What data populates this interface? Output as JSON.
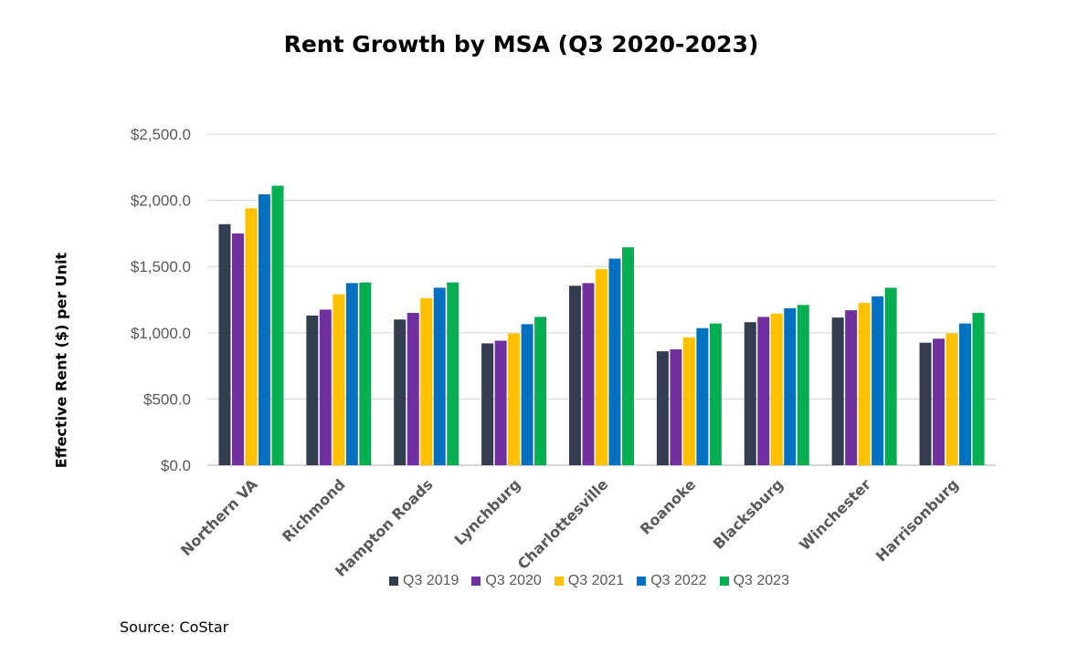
{
  "chart_data": {
    "type": "bar",
    "title": "Rent Growth by MSA (Q3 2020-2023)",
    "ylabel": "Effective Rent ($) per Unit",
    "xlabel": "",
    "ylim": [
      0,
      2500
    ],
    "yticks": [
      "$0.0",
      "$500.0",
      "$1,000.0",
      "$1,500.0",
      "$2,000.0",
      "$2,500.0"
    ],
    "grid": true,
    "legend_position": "bottom",
    "categories": [
      "Northern VA",
      "Richmond",
      "Hampton Roads",
      "Lynchburg",
      "Charlottesville",
      "Roanoke",
      "Blacksburg",
      "Winchester",
      "Harrisonburg"
    ],
    "series": [
      {
        "name": "Q3 2019",
        "color": "#323E4F",
        "values": [
          1820,
          1130,
          1100,
          920,
          1355,
          860,
          1080,
          1115,
          925
        ]
      },
      {
        "name": "Q3 2020",
        "color": "#7030A0",
        "values": [
          1750,
          1175,
          1150,
          940,
          1375,
          875,
          1120,
          1170,
          955
        ]
      },
      {
        "name": "Q3 2021",
        "color": "#FFC000",
        "values": [
          1940,
          1290,
          1260,
          995,
          1480,
          965,
          1145,
          1225,
          995
        ]
      },
      {
        "name": "Q3 2022",
        "color": "#0070C0",
        "values": [
          2045,
          1375,
          1340,
          1065,
          1560,
          1035,
          1185,
          1275,
          1070
        ]
      },
      {
        "name": "Q3 2023",
        "color": "#00B050",
        "values": [
          2110,
          1380,
          1380,
          1120,
          1645,
          1070,
          1210,
          1340,
          1150
        ]
      }
    ]
  },
  "source": "Source: CoStar"
}
